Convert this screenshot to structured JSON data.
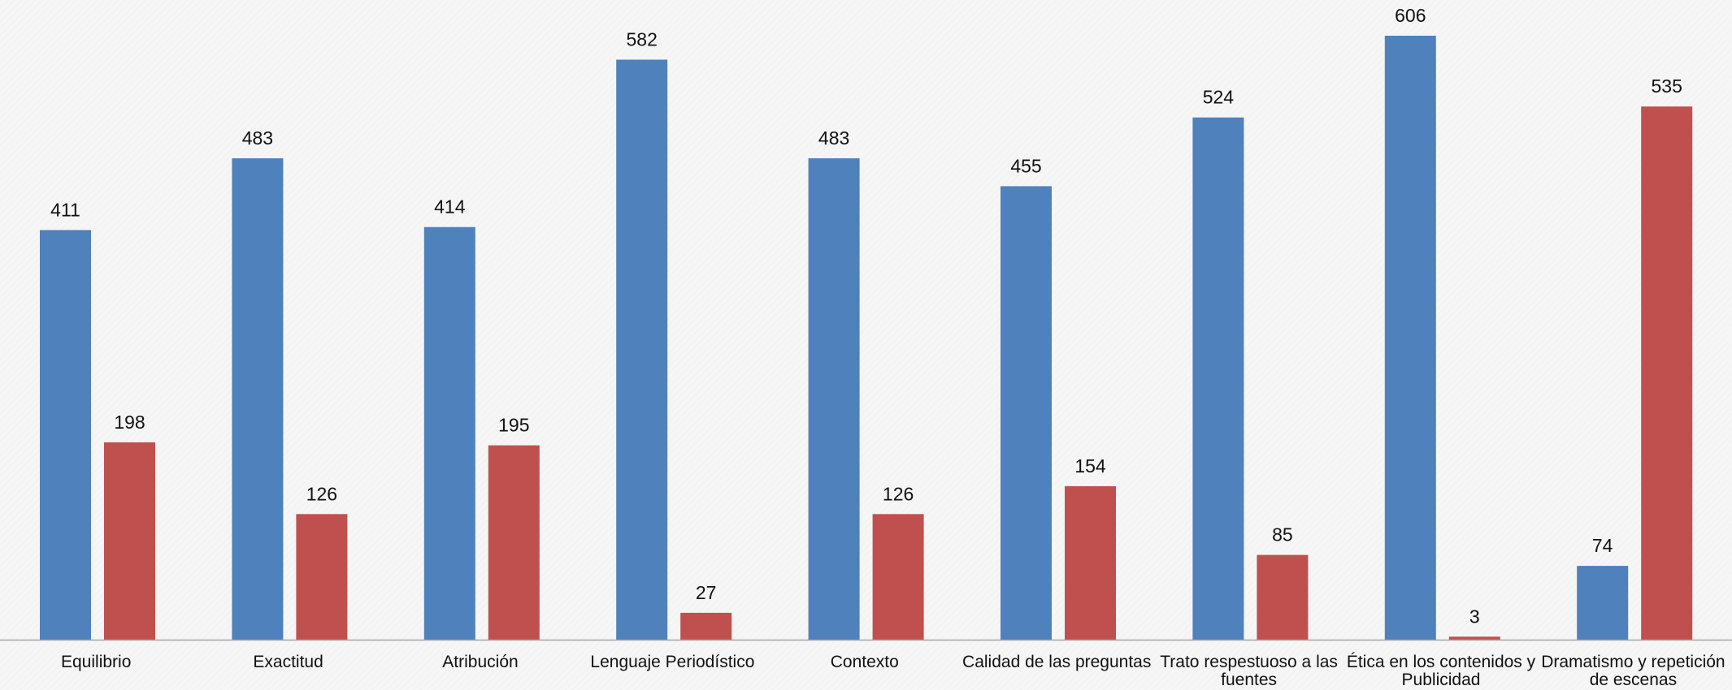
{
  "chart_data": {
    "type": "bar",
    "categories": [
      [
        "Equilibrio"
      ],
      [
        "Exactitud"
      ],
      [
        "Atribución"
      ],
      [
        "Lenguaje Periodístico"
      ],
      [
        "Contexto"
      ],
      [
        "Calidad de las preguntas"
      ],
      [
        "Trato respestuoso a las",
        "fuentes"
      ],
      [
        "Ética en los contenidos y",
        "Publicidad"
      ],
      [
        "Dramatismo y repetición",
        "de escenas"
      ]
    ],
    "series": [
      {
        "values": [
          411,
          483,
          414,
          582,
          483,
          455,
          524,
          606,
          74
        ],
        "color": "#4f81bd"
      },
      {
        "values": [
          198,
          126,
          195,
          27,
          126,
          154,
          85,
          3,
          535
        ],
        "color": "#c0504d"
      }
    ],
    "ylim": [
      0,
      606
    ],
    "grid": false,
    "legend": "none",
    "axis_color": "#a6a6a6"
  }
}
